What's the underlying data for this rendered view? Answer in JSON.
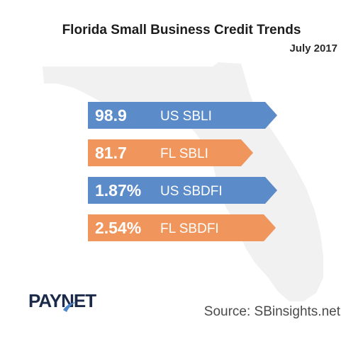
{
  "chart_data": {
    "type": "bar",
    "title": "Florida Small Business Credit Trends",
    "subtitle": "July 2017",
    "bars": [
      {
        "value_text": "98.9",
        "label": "US SBLI",
        "value": 98.9,
        "color": "#5b8bc9"
      },
      {
        "value_text": "81.7",
        "label": "FL SBLI",
        "value": 81.7,
        "color": "#f0955c"
      },
      {
        "value_text": "1.87%",
        "label": "US SBDFI",
        "value": 1.87,
        "color": "#5b8bc9"
      },
      {
        "value_text": "2.54%",
        "label": "FL SBDFI",
        "value": 2.54,
        "color": "#f0955c"
      }
    ]
  },
  "logo": {
    "text": "PAYNET"
  },
  "source": "Source: SBinsights.net",
  "colors": {
    "us": "#5b8bc9",
    "fl": "#f0955c",
    "map": "#f1f1f1"
  }
}
